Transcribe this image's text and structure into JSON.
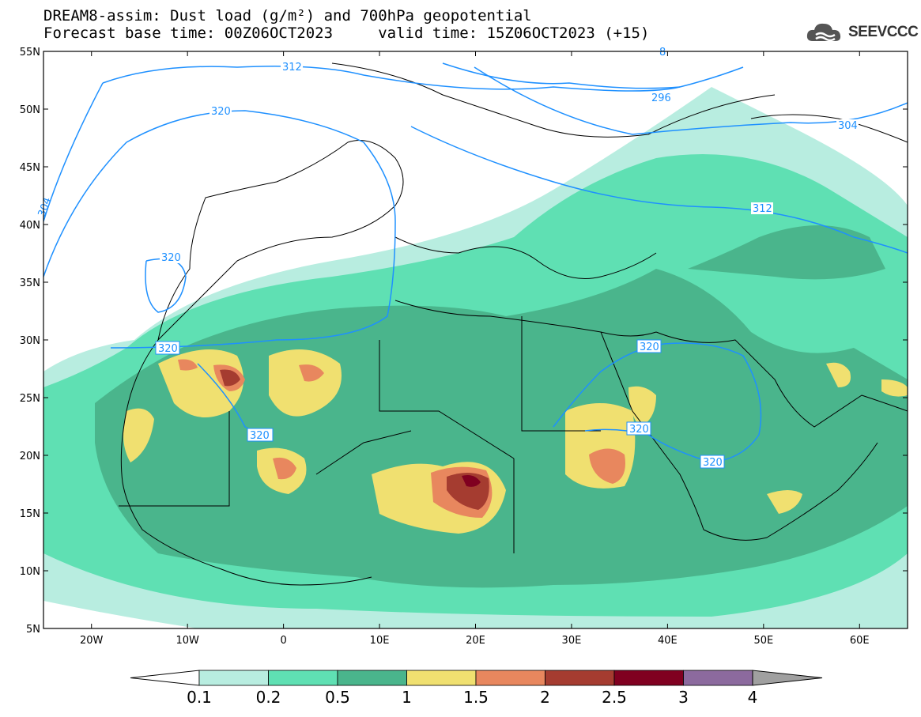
{
  "title": {
    "line1": "DREAM8-assim: Dust load (g/m²) and 700hPa geopotential",
    "line2": "Forecast base time: 00Z06OCT2023     valid time: 15Z06OCT2023 (+15)"
  },
  "logo": {
    "text": "SEEVCCC",
    "icon": "cloud-icon"
  },
  "axes": {
    "lat_labels": [
      "55N",
      "50N",
      "45N",
      "40N",
      "35N",
      "30N",
      "25N",
      "20N",
      "15N",
      "10N",
      "5N"
    ],
    "lon_labels": [
      "20W",
      "10W",
      "0",
      "10E",
      "20E",
      "30E",
      "40E",
      "50E",
      "60E"
    ],
    "lon_range": [
      -25,
      65
    ],
    "lat_range": [
      5,
      55
    ]
  },
  "colorbar": {
    "levels": [
      "0.1",
      "0.2",
      "0.5",
      "1",
      "1.5",
      "2",
      "2.5",
      "3",
      "4"
    ],
    "colors": [
      "#b8ede0",
      "#5fe0b3",
      "#4ab58c",
      "#f0e070",
      "#e8875e",
      "#a53c30",
      "#800020",
      "#8c6a9e"
    ],
    "over_color": "#a0a0a0",
    "under_color": "#ffffff"
  },
  "contours": {
    "color": "#1e90ff",
    "labels": [
      "312",
      "320",
      "320",
      "296",
      "304",
      "312",
      "320",
      "320",
      "320",
      "320",
      "320",
      "304",
      "8"
    ]
  }
}
